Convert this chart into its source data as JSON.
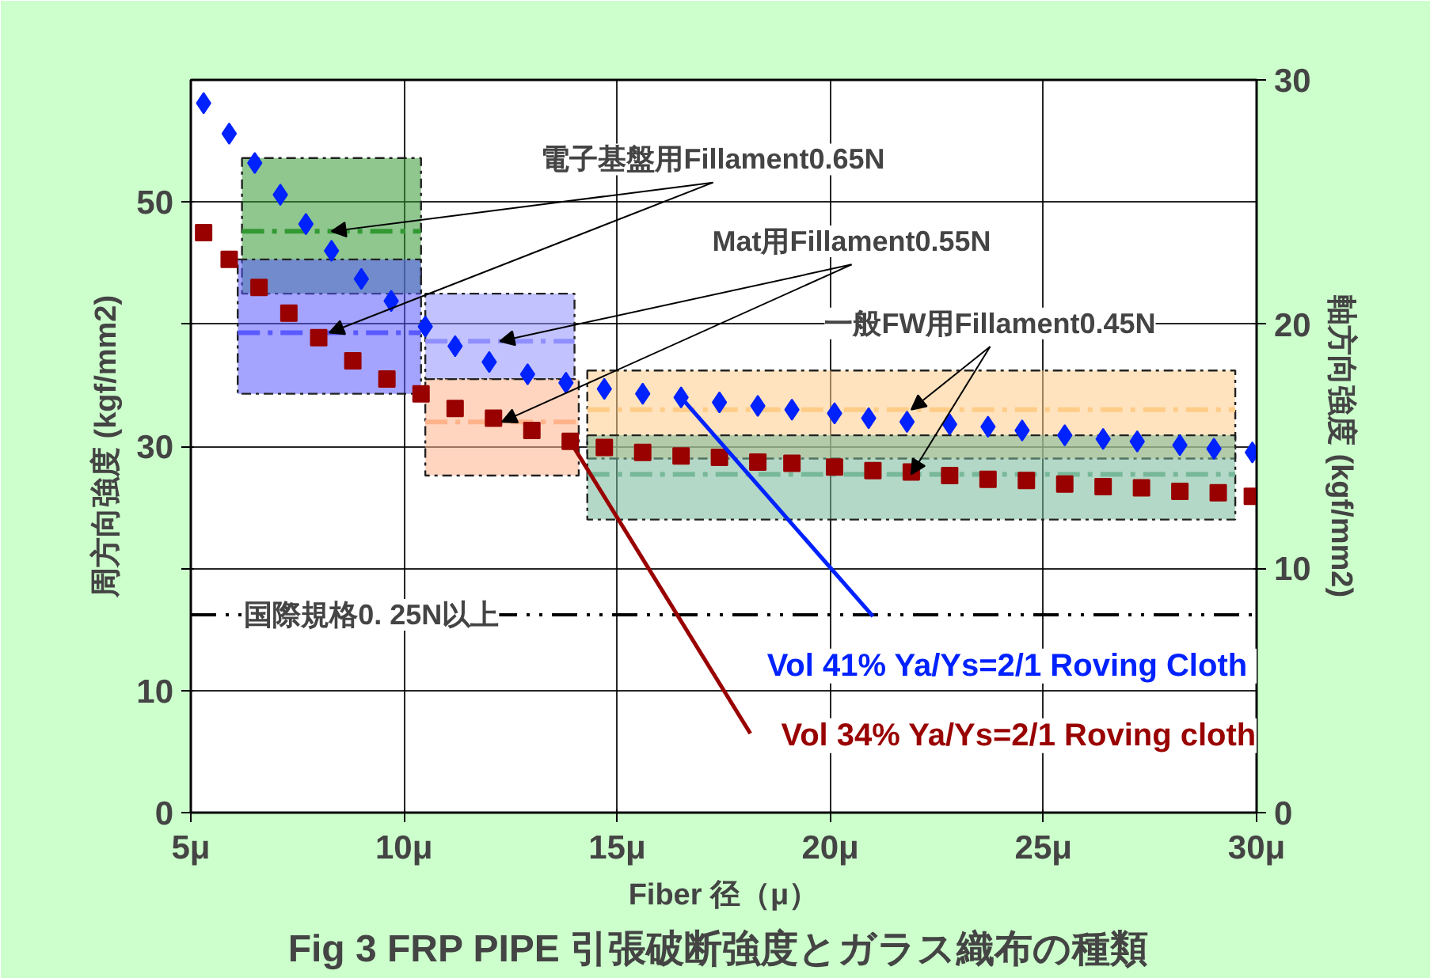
{
  "chart_data": {
    "type": "line",
    "title": "Fig 3  FRP PIPE 引張破断強度とガラス織布の種類",
    "xlabel": "Fiber 径（μ）",
    "ylabel": "周方向強度 (kgf/mm2)",
    "y2label": "軸方向強度 (kgf/mm2)",
    "xlim": [
      5,
      30
    ],
    "xticks": [
      {
        "value": 5,
        "label": "5μ"
      },
      {
        "value": 10,
        "label": "10μ"
      },
      {
        "value": 15,
        "label": "15μ"
      },
      {
        "value": 20,
        "label": "20μ"
      },
      {
        "value": 25,
        "label": "25μ"
      },
      {
        "value": 30,
        "label": "30μ"
      }
    ],
    "ylim": [
      0,
      60
    ],
    "yticks": [
      0,
      10,
      {
        "value": 20,
        "label": null
      },
      30,
      {
        "value": 40,
        "label": null
      },
      50
    ],
    "y2lim": [
      0,
      30
    ],
    "y2ticks": [
      0,
      10,
      20,
      30
    ],
    "grid": true,
    "line_style": "dashed",
    "series": [
      {
        "color": "#339933",
        "x": [
          6.2,
          10.4
        ],
        "values": [
          47.6,
          47.6
        ],
        "lower": [
          42.5,
          42.5
        ],
        "upper": [
          53.6,
          53.6
        ]
      },
      {
        "color": "#5a5aff",
        "x": [
          6.1,
          10.4
        ],
        "values": [
          39.3,
          39.3
        ],
        "lower": [
          34.3,
          34.3
        ],
        "upper": [
          45.3,
          45.3
        ]
      },
      {
        "color": "#8f8fff",
        "x": [
          10.5,
          14.0
        ],
        "values": [
          38.6,
          38.6
        ],
        "lower": [
          35.5,
          35.5
        ],
        "upper": [
          42.5,
          42.5
        ]
      },
      {
        "color": "#ffb38a",
        "x": [
          10.5,
          14.1
        ],
        "values": [
          32.0,
          32.0
        ],
        "lower": [
          27.6,
          27.6
        ],
        "upper": [
          35.5,
          35.5
        ]
      },
      {
        "color": "#ffcc88",
        "x": [
          14.3,
          29.5
        ],
        "values": [
          33.0,
          33.0
        ],
        "lower": [
          29.0,
          29.0
        ],
        "upper": [
          36.2,
          36.2
        ]
      },
      {
        "color": "#77b899",
        "x": [
          14.3,
          29.5
        ],
        "values": [
          27.7,
          27.7
        ],
        "lower": [
          24.0,
          24.0
        ],
        "upper": [
          30.9,
          30.9
        ]
      },
      {
        "type": "scatter",
        "marker": "diamond",
        "name": "Vol 41% Ya/Ys=2/1 Roving  Cloth",
        "color": "#0022ff",
        "x": [
          5.3,
          5.9,
          6.5,
          7.1,
          7.7,
          8.3,
          9.0,
          9.7,
          10.5,
          11.2,
          12.0,
          12.9,
          13.8,
          14.7,
          15.6,
          16.5,
          17.4,
          18.3,
          19.1,
          20.1,
          20.9,
          21.8,
          22.8,
          23.7,
          24.5,
          25.5,
          26.4,
          27.2,
          28.2,
          29.0,
          29.9
        ],
        "values": [
          58.1,
          55.6,
          53.2,
          50.6,
          48.2,
          46.0,
          43.7,
          41.9,
          39.8,
          38.2,
          36.9,
          35.9,
          35.2,
          34.7,
          34.3,
          34.0,
          33.6,
          33.3,
          33.0,
          32.7,
          32.3,
          32.0,
          31.8,
          31.6,
          31.3,
          30.9,
          30.6,
          30.4,
          30.1,
          29.8,
          29.5
        ]
      },
      {
        "type": "scatter",
        "marker": "square",
        "name": "Vol 34% Ya/Ys=2/1 Roving cloth",
        "color": "#990000",
        "x": [
          5.3,
          5.9,
          6.6,
          7.3,
          8.0,
          8.8,
          9.6,
          10.4,
          11.2,
          12.1,
          13.0,
          13.9,
          14.7,
          15.6,
          16.5,
          17.4,
          18.3,
          19.1,
          20.1,
          21.0,
          21.9,
          22.8,
          23.7,
          24.6,
          25.5,
          26.4,
          27.3,
          28.2,
          29.1,
          29.9
        ],
        "values": [
          47.5,
          45.3,
          43.0,
          40.9,
          38.9,
          37.0,
          35.5,
          34.3,
          33.1,
          32.3,
          31.3,
          30.4,
          29.9,
          29.5,
          29.2,
          29.1,
          28.7,
          28.6,
          28.3,
          28.0,
          27.9,
          27.6,
          27.3,
          27.2,
          26.9,
          26.7,
          26.6,
          26.3,
          26.2,
          25.9
        ]
      }
    ],
    "ref_lines": [
      {
        "axis": "y",
        "value": 16.2,
        "label": "国際規格0. 25N以上",
        "color": "#000000"
      }
    ],
    "annotations": [
      {
        "text": "電子基盤用Fillament0.65N",
        "x": 8.3,
        "y": 47.6
      },
      {
        "text": "Mat用Fillament0.55N",
        "x": 12.25,
        "y": 38.6
      },
      {
        "text": "一般FW用Fillament0.45N",
        "x": 21.9,
        "y": 33.0
      }
    ]
  }
}
